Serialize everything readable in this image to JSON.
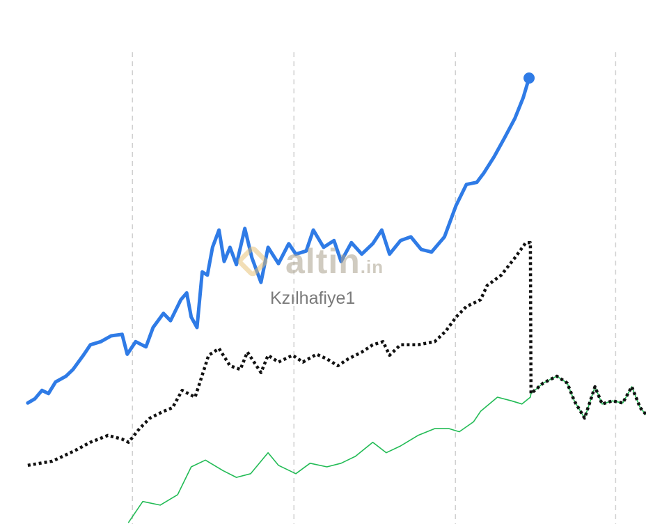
{
  "chart_data": {
    "type": "line",
    "title": "",
    "xlabel": "",
    "ylabel": "",
    "xlim": [
      0,
      100
    ],
    "ylim": [
      0,
      100
    ],
    "grid": {
      "vertical": true,
      "horizontal": false,
      "x": [
        20.5,
        45.5,
        70.5,
        95.3
      ]
    },
    "watermark": "altin.in",
    "author_label": "Kzılhafiye1",
    "series": [
      {
        "color": "#2f7be6",
        "style": "solid-thick",
        "end_marker": true,
        "x": [
          4.3,
          5.4,
          6.5,
          7.5,
          8.6,
          10.2,
          11.3,
          12.9,
          14.0,
          15.6,
          17.2,
          18.9,
          19.7,
          21.0,
          22.6,
          23.7,
          25.3,
          26.4,
          28.0,
          28.9,
          29.6,
          30.5,
          31.3,
          32.1,
          32.9,
          33.9,
          34.7,
          35.6,
          36.6,
          37.9,
          39.0,
          40.4,
          41.5,
          43.1,
          44.7,
          45.8,
          47.4,
          48.5,
          50.1,
          51.7,
          52.8,
          54.4,
          56.0,
          57.7,
          59.1,
          60.3,
          62.0,
          63.6,
          65.2,
          66.8,
          68.8,
          70.6,
          72.2,
          73.8,
          74.9,
          76.5,
          78.1,
          79.7,
          81.0,
          81.9
        ],
        "y": [
          23.1,
          23.9,
          25.5,
          24.9,
          27.1,
          28.2,
          29.5,
          32.2,
          34.2,
          34.8,
          35.9,
          36.2,
          32.4,
          34.8,
          33.8,
          37.5,
          40.2,
          38.8,
          42.8,
          44.1,
          39.5,
          37.5,
          48.1,
          47.5,
          52.8,
          56.1,
          50.1,
          52.8,
          49.5,
          56.4,
          50.8,
          46.1,
          52.8,
          49.7,
          53.5,
          51.5,
          52.1,
          56.1,
          52.8,
          54.1,
          50.1,
          53.7,
          51.5,
          53.5,
          56.1,
          51.5,
          54.1,
          54.8,
          52.4,
          51.9,
          54.8,
          60.8,
          64.8,
          65.2,
          67.0,
          70.1,
          73.7,
          77.4,
          81.4,
          85.1
        ]
      },
      {
        "color": "#22bb55",
        "style": "solid-thin",
        "x": [
          19.9,
          22.1,
          24.8,
          27.5,
          29.6,
          31.8,
          34.5,
          36.6,
          38.8,
          41.5,
          43.1,
          45.8,
          48.0,
          50.6,
          52.8,
          55.0,
          57.7,
          59.8,
          62.0,
          64.7,
          67.3,
          69.5,
          71.1,
          73.3,
          74.4,
          77.0,
          79.2,
          80.8,
          82.1,
          82.2,
          84.1,
          86.2,
          87.8,
          88.9,
          90.5,
          92.1,
          93.2,
          94.8,
          96.4,
          97.8,
          99.1,
          100
        ],
        "y": [
          0.3,
          4.3,
          3.6,
          5.6,
          10.9,
          12.2,
          10.2,
          8.9,
          9.6,
          13.6,
          11.2,
          9.6,
          11.6,
          10.9,
          11.6,
          12.9,
          15.6,
          13.6,
          14.9,
          16.9,
          18.2,
          18.2,
          17.6,
          19.5,
          21.5,
          24.2,
          23.5,
          22.9,
          24.2,
          24.9,
          26.9,
          28.2,
          26.9,
          23.5,
          20.2,
          26.2,
          22.9,
          23.5,
          23.1,
          26.2,
          22.2,
          20.9
        ]
      },
      {
        "color": "#111111",
        "style": "dotted",
        "x": [
          4.3,
          8.1,
          9.7,
          11.9,
          14.0,
          16.7,
          18.9,
          19.9,
          21.6,
          23.2,
          25.3,
          26.7,
          28.2,
          30.2,
          32.3,
          33.9,
          35.6,
          37.2,
          38.3,
          40.4,
          41.5,
          43.1,
          45.3,
          46.9,
          49.0,
          50.6,
          52.3,
          53.9,
          56.0,
          57.7,
          59.3,
          60.3,
          62.0,
          64.7,
          67.3,
          69.0,
          70.6,
          72.2,
          74.4,
          75.4,
          77.6,
          79.7,
          81.4,
          82.1,
          82.2,
          84.1,
          86.2,
          87.8,
          88.9,
          90.5,
          92.1,
          93.2,
          94.8,
          96.4,
          97.8,
          99.1,
          100
        ],
        "y": [
          11.2,
          12.0,
          12.9,
          14.2,
          15.6,
          16.9,
          16.2,
          15.6,
          18.2,
          20.2,
          21.5,
          22.2,
          25.5,
          24.2,
          32.2,
          33.5,
          30.2,
          29.5,
          32.8,
          28.9,
          32.2,
          30.9,
          32.2,
          30.9,
          32.4,
          31.5,
          30.2,
          31.5,
          32.8,
          34.2,
          34.8,
          32.2,
          34.2,
          34.2,
          34.8,
          36.8,
          39.5,
          41.5,
          42.8,
          45.5,
          47.5,
          50.8,
          53.7,
          53.7,
          24.9,
          26.9,
          28.2,
          26.9,
          23.5,
          20.2,
          26.2,
          22.9,
          23.5,
          23.1,
          26.2,
          22.2,
          20.9
        ]
      }
    ]
  }
}
